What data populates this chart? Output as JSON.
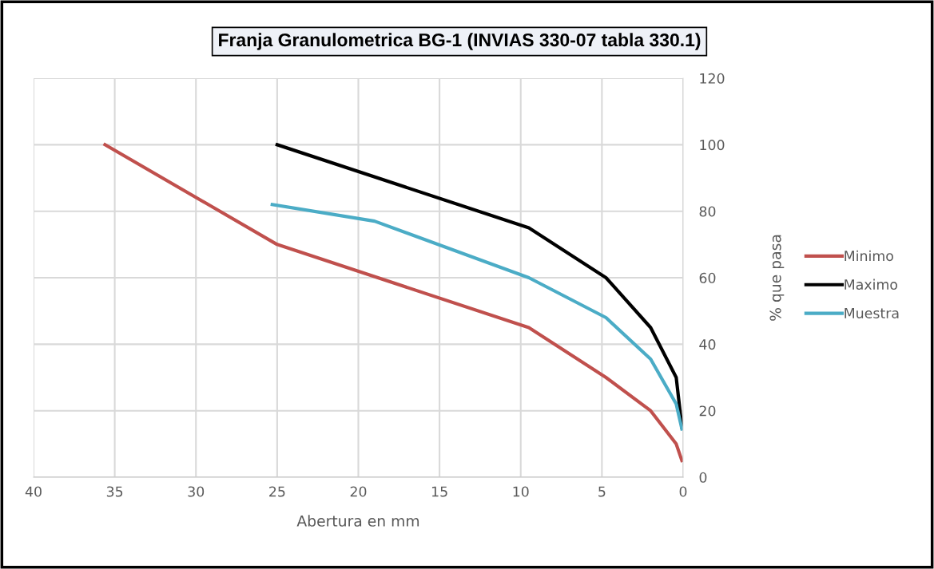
{
  "chart_data": {
    "type": "line",
    "title": "Franja Granulometrica BG-1 (INVIAS 330-07 tabla 330.1)",
    "xlabel": "Abertura en mm",
    "ylabel": "% que pasa",
    "xlim": [
      40,
      0
    ],
    "xticks": [
      40,
      35,
      30,
      25,
      20,
      15,
      10,
      5,
      0
    ],
    "ylim": [
      0,
      120
    ],
    "yticks": [
      0,
      20,
      40,
      60,
      80,
      100,
      120
    ],
    "grid": true,
    "legend": "right",
    "marker": "none",
    "line_style": "solid",
    "series": [
      {
        "name": "Minimo",
        "color": "#c0504d",
        "x": [
          35.6,
          25,
          9.5,
          4.75,
          2,
          0.425,
          0.075
        ],
        "values": [
          100,
          70,
          45,
          30,
          20,
          10,
          5
        ]
      },
      {
        "name": "Maximo",
        "color": "#000000",
        "x": [
          25,
          9.5,
          4.75,
          2,
          0.425,
          0.075
        ],
        "values": [
          100,
          75,
          60,
          45,
          30,
          15
        ]
      },
      {
        "name": "Muestra",
        "color": "#4bacc6",
        "x": [
          25.3,
          19,
          9.5,
          4.75,
          2,
          0.425,
          0.075
        ],
        "values": [
          82,
          77,
          60,
          48,
          35.5,
          22,
          14.5
        ]
      }
    ]
  }
}
